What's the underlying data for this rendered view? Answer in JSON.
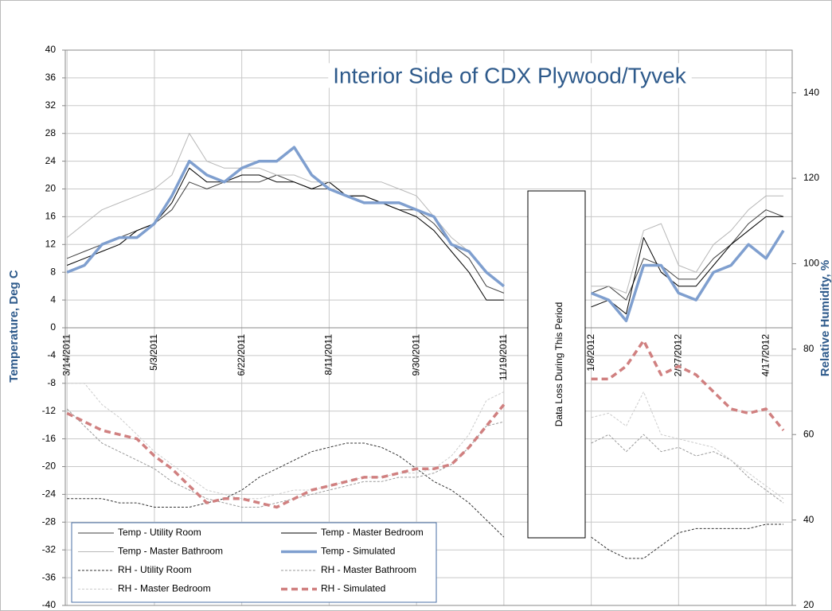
{
  "chart_data": {
    "type": "line",
    "title": "Interior Side of CDX Plywood/Tyvek",
    "y_label": "Temperature, Deg C",
    "y2_label": "Relative Humidity, %",
    "annotation": "Data Loss During This Period",
    "x": [
      "2011-03-14",
      "2011-03-24",
      "2011-04-03",
      "2011-04-13",
      "2011-04-23",
      "2011-05-03",
      "2011-05-13",
      "2011-05-23",
      "2011-06-02",
      "2011-06-12",
      "2011-06-22",
      "2011-07-02",
      "2011-07-12",
      "2011-07-22",
      "2011-08-01",
      "2011-08-11",
      "2011-08-21",
      "2011-08-31",
      "2011-09-10",
      "2011-09-20",
      "2011-09-30",
      "2011-10-10",
      "2011-10-20",
      "2011-10-30",
      "2011-11-09",
      "2011-11-19",
      "2011-11-29",
      "2011-12-09",
      "2011-12-19",
      "2011-12-29",
      "2012-01-08",
      "2012-01-18",
      "2012-01-28",
      "2012-02-07",
      "2012-02-17",
      "2012-02-27",
      "2012-03-08",
      "2012-03-18",
      "2012-03-28",
      "2012-04-07",
      "2012-04-17",
      "2012-04-27"
    ],
    "xlim": [
      "2011-03-13",
      "2012-05-02"
    ],
    "xticks": [
      {
        "value": "2011-03-14",
        "label": "3/14/2011"
      },
      {
        "value": "2011-05-03",
        "label": "5/3/2011"
      },
      {
        "value": "2011-06-22",
        "label": "6/22/2011"
      },
      {
        "value": "2011-08-11",
        "label": "8/11/2011"
      },
      {
        "value": "2011-09-30",
        "label": "9/30/2011"
      },
      {
        "value": "2011-11-19",
        "label": "11/19/2011"
      },
      {
        "value": "2012-01-08",
        "label": "1/8/2012"
      },
      {
        "value": "2012-02-27",
        "label": "2/27/2012"
      },
      {
        "value": "2012-04-17",
        "label": "4/17/2012"
      }
    ],
    "ylim": [
      -40,
      40
    ],
    "yticks": [
      -40,
      -36,
      -32,
      -28,
      -24,
      -20,
      -16,
      -12,
      -8,
      -4,
      0,
      4,
      8,
      12,
      16,
      20,
      24,
      28,
      32,
      36,
      40
    ],
    "y2lim": [
      20,
      150
    ],
    "y2ticks": [
      20,
      40,
      60,
      80,
      100,
      120,
      140
    ],
    "grid": true,
    "legend": "lower left",
    "series": [
      {
        "name": "Temp - Utility Room",
        "color": "#404040",
        "line_style": "solid",
        "line_width": 1,
        "values": [
          10,
          11,
          12,
          13,
          14,
          15,
          17,
          21,
          20,
          21,
          21,
          21,
          22,
          21,
          20,
          20,
          19,
          19,
          18,
          17,
          17,
          15,
          12,
          10,
          6,
          5,
          null,
          null,
          null,
          null,
          5,
          6,
          4,
          10,
          9,
          7,
          7,
          10,
          12,
          15,
          17,
          16
        ]
      },
      {
        "name": "Temp - Master Bedroom",
        "color": "#000000",
        "line_style": "solid",
        "line_width": 1,
        "values": [
          9,
          10,
          11,
          12,
          14,
          15,
          18,
          23,
          21,
          21,
          22,
          22,
          21,
          21,
          20,
          21,
          19,
          19,
          18,
          17,
          16,
          14,
          11,
          8,
          4,
          4,
          null,
          null,
          null,
          null,
          3,
          4,
          2,
          13,
          8,
          6,
          6,
          9,
          12,
          14,
          16,
          16
        ]
      },
      {
        "name": "Temp - Master Bathroom",
        "color": "#b8b8b8",
        "line_style": "solid",
        "line_width": 1,
        "values": [
          13,
          15,
          17,
          18,
          19,
          20,
          22,
          28,
          24,
          23,
          23,
          23,
          22,
          22,
          21,
          21,
          21,
          21,
          21,
          20,
          19,
          16,
          13,
          11,
          8,
          8,
          null,
          null,
          null,
          null,
          6,
          6,
          5,
          14,
          15,
          9,
          8,
          12,
          14,
          17,
          19,
          19
        ]
      },
      {
        "name": "Temp - Simulated",
        "color": "#7f9fcf",
        "line_style": "solid",
        "line_width": 3.5,
        "values": [
          8,
          9,
          12,
          13,
          13,
          15,
          19,
          24,
          22,
          21,
          23,
          24,
          24,
          26,
          22,
          20,
          19,
          18,
          18,
          18,
          17,
          16,
          12,
          11,
          8,
          6,
          null,
          null,
          null,
          null,
          5,
          4,
          1,
          9,
          9,
          5,
          4,
          8,
          9,
          12,
          10,
          14
        ]
      },
      {
        "name": "RH - Utility Room",
        "color": "#333333",
        "line_style": "dashed",
        "line_width": 1,
        "axis": "y2",
        "values": [
          45,
          45,
          45,
          44,
          44,
          43,
          43,
          43,
          44,
          45,
          47,
          50,
          52,
          54,
          56,
          57,
          58,
          58,
          57,
          55,
          52,
          49,
          47,
          44,
          40,
          36,
          null,
          null,
          null,
          null,
          36,
          33,
          31,
          31,
          34,
          37,
          38,
          38,
          38,
          38,
          39,
          39
        ]
      },
      {
        "name": "RH - Master Bathroom",
        "color": "#999999",
        "line_style": "dashed",
        "line_width": 1,
        "axis": "y2",
        "values": [
          66,
          62,
          58,
          56,
          54,
          52,
          49,
          47,
          45,
          44,
          43,
          43,
          44,
          45,
          46,
          47,
          48,
          49,
          49,
          50,
          50,
          51,
          53,
          57,
          62,
          63,
          null,
          null,
          null,
          null,
          58,
          60,
          56,
          60,
          56,
          57,
          55,
          56,
          54,
          50,
          47,
          44
        ]
      },
      {
        "name": "RH - Master Bedroom",
        "color": "#cccccc",
        "line_style": "dashed",
        "line_width": 1,
        "axis": "y2",
        "values": [
          72,
          72,
          67,
          64,
          60,
          56,
          53,
          50,
          47,
          46,
          45,
          45,
          46,
          47,
          47,
          48,
          49,
          50,
          50,
          51,
          51,
          52,
          55,
          60,
          68,
          70,
          null,
          null,
          null,
          null,
          64,
          65,
          62,
          70,
          60,
          59,
          58,
          57,
          54,
          51,
          48,
          45
        ]
      },
      {
        "name": "RH - Simulated",
        "color": "#d08080",
        "line_style": "dashed",
        "line_width": 3.5,
        "axis": "y2",
        "values": [
          65,
          63,
          61,
          60,
          59,
          55,
          52,
          48,
          44,
          45,
          45,
          44,
          43,
          45,
          47,
          48,
          49,
          50,
          50,
          51,
          52,
          52,
          53,
          57,
          62,
          67,
          null,
          null,
          null,
          null,
          73,
          73,
          76,
          82,
          74,
          76,
          74,
          70,
          66,
          65,
          66,
          61
        ]
      }
    ]
  }
}
